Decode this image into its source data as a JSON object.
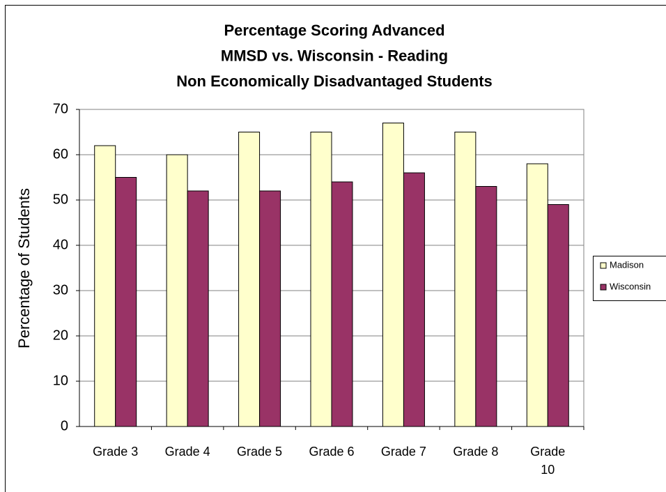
{
  "chart_data": {
    "type": "bar",
    "title": [
      "Percentage Scoring Advanced",
      "MMSD vs. Wisconsin - Reading",
      "Non Economically Disadvantaged Students"
    ],
    "y_label": "Percentage of Students",
    "categories": [
      "Grade 3",
      "Grade 4",
      "Grade 5",
      "Grade 6",
      "Grade 7",
      "Grade 8",
      "Grade 10"
    ],
    "series": [
      {
        "name": "Madison",
        "color": "#ffffcc",
        "values": [
          62,
          60,
          65,
          65,
          67,
          65,
          58
        ]
      },
      {
        "name": "Wisconsin",
        "color": "#993366",
        "values": [
          55,
          52,
          52,
          54,
          56,
          53,
          49
        ]
      }
    ],
    "ylim": [
      0,
      70
    ],
    "yticks": [
      0,
      10,
      20,
      30,
      40,
      50,
      60,
      70
    ],
    "grid": true,
    "legend": "right"
  }
}
